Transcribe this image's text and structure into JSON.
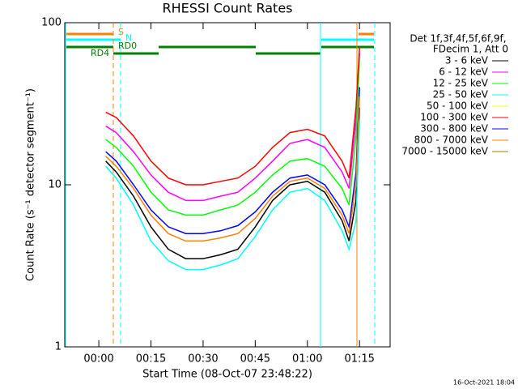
{
  "chart_data": {
    "type": "line",
    "title": "RHESSI Count Rates",
    "xlabel": "Start Time (08-Oct-07 23:48:22)",
    "ylabel": "Count Rate (s⁻¹ detector segment⁻¹)",
    "log_y": true,
    "x": [
      2,
      5,
      10,
      15,
      20,
      25,
      30,
      35,
      40,
      45,
      50,
      55,
      60,
      65,
      70,
      72,
      74,
      75
    ],
    "xlim": [
      -9.8,
      83.8
    ],
    "xticks": [
      {
        "value": 0,
        "label": "00:00"
      },
      {
        "value": 15,
        "label": "00:15"
      },
      {
        "value": 30,
        "label": "00:30"
      },
      {
        "value": 45,
        "label": "00:45"
      },
      {
        "value": 60,
        "label": "01:00"
      },
      {
        "value": 75,
        "label": "01:15"
      }
    ],
    "ylim": [
      1,
      100
    ],
    "yticks": [
      1,
      10,
      100
    ],
    "legend_header": [
      "Det 1f,3f,4f,5f,6f,9f,",
      "FDecim 1, Att 0"
    ],
    "flag_labels": [
      "S",
      "N",
      "RD0",
      "RD4"
    ],
    "footer": "16-Oct-2021 18:04",
    "series": [
      {
        "name": "3 - 6 keV",
        "color": "#000000",
        "values": [
          14,
          12,
          8.5,
          5.5,
          4,
          3.5,
          3.5,
          3.7,
          4,
          5.5,
          8,
          10,
          10.5,
          9,
          6,
          4.5,
          8,
          30
        ]
      },
      {
        "name": "6 - 12 keV",
        "color": "#ff00ff",
        "values": [
          23,
          21,
          16,
          11.5,
          9,
          8,
          8,
          8.5,
          9,
          11,
          14,
          18,
          19,
          17,
          12,
          9.5,
          25,
          65
        ]
      },
      {
        "name": "12 - 25 keV",
        "color": "#00ff00",
        "values": [
          19,
          17,
          13,
          9,
          7,
          6.5,
          6.5,
          7,
          7.5,
          9,
          11.5,
          14,
          14.5,
          13,
          9.5,
          7.5,
          20,
          60
        ]
      },
      {
        "name": "25 - 50 keV",
        "color": "#00ffff",
        "values": [
          13,
          11,
          7.5,
          4.5,
          3.4,
          3,
          3,
          3.2,
          3.5,
          4.8,
          7,
          9,
          9.5,
          8,
          5.2,
          4,
          6,
          25
        ]
      },
      {
        "name": "50 - 100 keV",
        "color": "#ffff00",
        "values": [
          null,
          null,
          null,
          null,
          null,
          null,
          null,
          null,
          null,
          null,
          null,
          null,
          null,
          null,
          null,
          null,
          null,
          null
        ]
      },
      {
        "name": "100 - 300 keV",
        "color": "#ff0000",
        "values": [
          28,
          26,
          20,
          14,
          11,
          10,
          10,
          10.5,
          11,
          13,
          17,
          21,
          22,
          20,
          14,
          11,
          30,
          70
        ]
      },
      {
        "name": "300 - 800 keV",
        "color": "#0000ff",
        "values": [
          16,
          14,
          10,
          7,
          5.5,
          5,
          5,
          5.2,
          5.6,
          6.8,
          9,
          11,
          11.5,
          10,
          7,
          5.5,
          12,
          40
        ]
      },
      {
        "name": "800 - 7000 keV",
        "color": "#ff8000",
        "values": [
          15,
          13,
          9.5,
          6.5,
          5,
          4.5,
          4.5,
          4.7,
          5,
          6.2,
          8.5,
          10.5,
          11,
          9.5,
          6.5,
          5,
          10,
          35
        ]
      },
      {
        "name": "7000 - 15000 keV",
        "color": "#a08000",
        "values": [
          null,
          null,
          null,
          null,
          null,
          null,
          null,
          null,
          null,
          null,
          null,
          null,
          null,
          null,
          null,
          null,
          null,
          null
        ]
      }
    ]
  }
}
